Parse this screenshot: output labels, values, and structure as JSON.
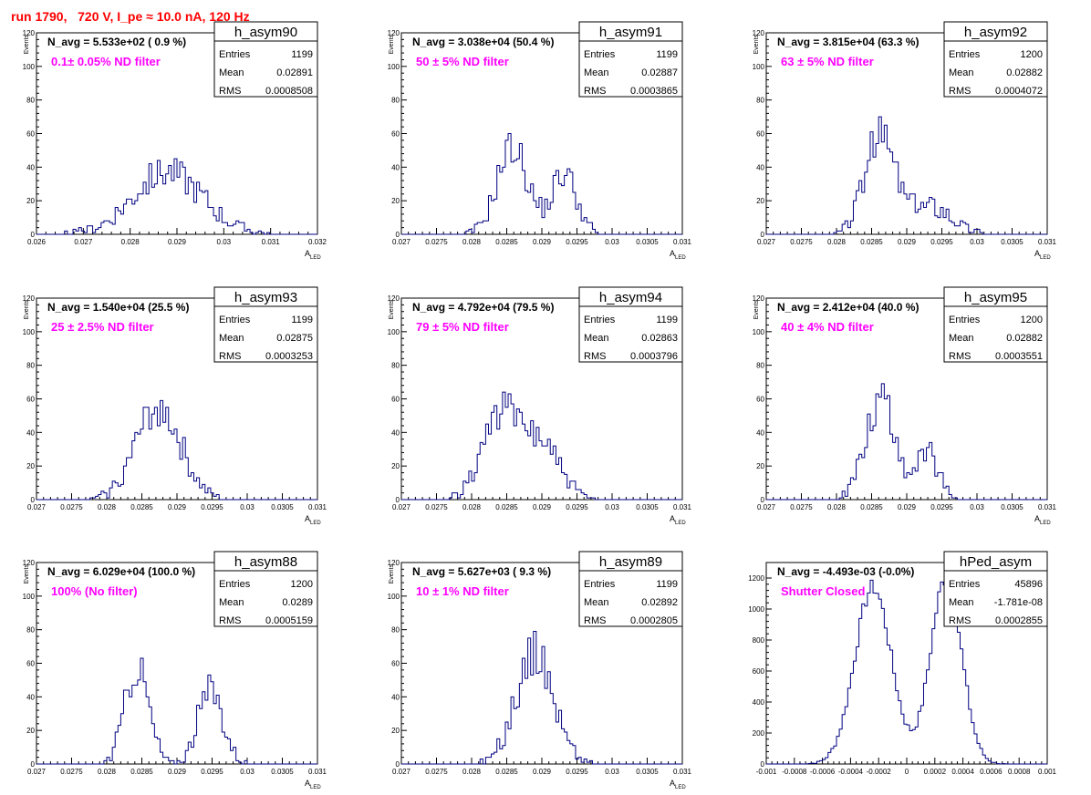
{
  "run_title": "run 1790,   720 V, I_pe ≈ 10.0 nA, 120 Hz",
  "colors": {
    "hist_line": "#000080",
    "annotation": "#ff00ff",
    "run_title": "#ff0000",
    "axes": "#000000"
  },
  "chart_data": [
    {
      "type": "histogram",
      "name": "h_asym90",
      "title": "N_avg = 5.533e+02 ( 0.9 %)",
      "annotation": "0.1± 0.05% ND filter",
      "xlabel": "A",
      "xlabel_sub": "LED",
      "ylabel": "Events",
      "xlim": [
        0.026,
        0.032
      ],
      "ylim": [
        0,
        120
      ],
      "xticks": [
        0.026,
        0.027,
        0.028,
        0.029,
        0.03,
        0.031,
        0.032
      ],
      "xticklabels": [
        "0.026",
        "0.027",
        "0.028",
        "0.029",
        "0.03",
        "0.031",
        "0.032"
      ],
      "yticks": [
        0,
        20,
        40,
        60,
        80,
        100,
        120
      ],
      "stats": {
        "Entries": "1199",
        "Mean": "0.02891",
        "RMS": "0.0008508"
      },
      "peaks": [
        {
          "mu": 0.0288,
          "sigma": 0.00075,
          "amp": 37
        }
      ],
      "noise_seed": 90
    },
    {
      "type": "histogram",
      "name": "h_asym91",
      "title": "N_avg = 3.038e+04 (50.4 %)",
      "annotation": "50 ± 5% ND filter",
      "xlabel": "A",
      "xlabel_sub": "LED",
      "ylabel": "Events",
      "xlim": [
        0.027,
        0.031
      ],
      "ylim": [
        0,
        120
      ],
      "xticks": [
        0.027,
        0.0275,
        0.028,
        0.0285,
        0.029,
        0.0295,
        0.03,
        0.0305,
        0.031
      ],
      "xticklabels": [
        "0.027",
        "0.0275",
        "0.028",
        "0.0285",
        "0.029",
        "0.0295",
        "0.03",
        "0.0305",
        "0.031"
      ],
      "yticks": [
        0,
        20,
        40,
        60,
        80,
        100,
        120
      ],
      "stats": {
        "Entries": "1199",
        "Mean": "0.02887",
        "RMS": "0.0003865"
      },
      "peaks": [
        {
          "mu": 0.02858,
          "sigma": 0.00022,
          "amp": 52
        },
        {
          "mu": 0.02932,
          "sigma": 0.00018,
          "amp": 36
        }
      ],
      "noise_seed": 91
    },
    {
      "type": "histogram",
      "name": "h_asym92",
      "title": "N_avg = 3.815e+04 (63.3 %)",
      "annotation": "63 ± 5% ND filter",
      "xlabel": "A",
      "xlabel_sub": "LED",
      "ylabel": "Events",
      "xlim": [
        0.027,
        0.031
      ],
      "ylim": [
        0,
        120
      ],
      "xticks": [
        0.027,
        0.0275,
        0.028,
        0.0285,
        0.029,
        0.0295,
        0.03,
        0.0305,
        0.031
      ],
      "xticklabels": [
        "0.027",
        "0.0275",
        "0.028",
        "0.0285",
        "0.029",
        "0.0295",
        "0.03",
        "0.0305",
        "0.031"
      ],
      "yticks": [
        0,
        20,
        40,
        60,
        80,
        100,
        120
      ],
      "stats": {
        "Entries": "1200",
        "Mean": "0.02882",
        "RMS": "0.0004072"
      },
      "peaks": [
        {
          "mu": 0.02862,
          "sigma": 0.00022,
          "amp": 58
        },
        {
          "mu": 0.02935,
          "sigma": 0.0003,
          "amp": 17
        }
      ],
      "noise_seed": 92
    },
    {
      "type": "histogram",
      "name": "h_asym93",
      "title": "N_avg = 1.540e+04 (25.5 %)",
      "annotation": "25 ± 2.5% ND filter",
      "xlabel": "A",
      "xlabel_sub": "LED",
      "ylabel": "Events",
      "xlim": [
        0.027,
        0.031
      ],
      "ylim": [
        0,
        120
      ],
      "xticks": [
        0.027,
        0.0275,
        0.028,
        0.0285,
        0.029,
        0.0295,
        0.03,
        0.0305,
        0.031
      ],
      "xticklabels": [
        "0.027",
        "0.0275",
        "0.028",
        "0.0285",
        "0.029",
        "0.0295",
        "0.03",
        "0.0305",
        "0.031"
      ],
      "yticks": [
        0,
        20,
        40,
        60,
        80,
        100,
        120
      ],
      "stats": {
        "Entries": "1199",
        "Mean": "0.02875",
        "RMS": "0.0003253"
      },
      "peaks": [
        {
          "mu": 0.02873,
          "sigma": 0.00032,
          "amp": 55
        }
      ],
      "noise_seed": 93
    },
    {
      "type": "histogram",
      "name": "h_asym94",
      "title": "N_avg = 4.792e+04 (79.5 %)",
      "annotation": "79 ± 5% ND filter",
      "xlabel": "A",
      "xlabel_sub": "LED",
      "ylabel": "Events",
      "xlim": [
        0.027,
        0.031
      ],
      "ylim": [
        0,
        120
      ],
      "xticks": [
        0.027,
        0.0275,
        0.028,
        0.0285,
        0.029,
        0.0295,
        0.03,
        0.0305,
        0.031
      ],
      "xticklabels": [
        "0.027",
        "0.0275",
        "0.028",
        "0.0285",
        "0.029",
        "0.0295",
        "0.03",
        "0.0305",
        "0.031"
      ],
      "yticks": [
        0,
        20,
        40,
        60,
        80,
        100,
        120
      ],
      "stats": {
        "Entries": "1199",
        "Mean": "0.02863",
        "RMS": "0.0003796"
      },
      "peaks": [
        {
          "mu": 0.02838,
          "sigma": 0.00025,
          "amp": 48
        },
        {
          "mu": 0.02895,
          "sigma": 0.00028,
          "amp": 36
        }
      ],
      "noise_seed": 94
    },
    {
      "type": "histogram",
      "name": "h_asym95",
      "title": "N_avg = 2.412e+04 (40.0 %)",
      "annotation": "40 ± 4% ND filter",
      "xlabel": "A",
      "xlabel_sub": "LED",
      "ylabel": "Events",
      "xlim": [
        0.027,
        0.031
      ],
      "ylim": [
        0,
        120
      ],
      "xticks": [
        0.027,
        0.0275,
        0.028,
        0.0285,
        0.029,
        0.0295,
        0.03,
        0.0305,
        0.031
      ],
      "xticklabels": [
        "0.027",
        "0.0275",
        "0.028",
        "0.0285",
        "0.029",
        "0.0295",
        "0.03",
        "0.0305",
        "0.031"
      ],
      "yticks": [
        0,
        20,
        40,
        60,
        80,
        100,
        120
      ],
      "stats": {
        "Entries": "1200",
        "Mean": "0.02882",
        "RMS": "0.0003551"
      },
      "peaks": [
        {
          "mu": 0.02863,
          "sigma": 0.00022,
          "amp": 60
        },
        {
          "mu": 0.0293,
          "sigma": 0.00015,
          "amp": 27
        }
      ],
      "noise_seed": 95
    },
    {
      "type": "histogram",
      "name": "h_asym88",
      "title": "N_avg = 6.029e+04 (100.0 %)",
      "annotation": "100% (No filter)",
      "xlabel": "A",
      "xlabel_sub": "LED",
      "ylabel": "Events",
      "xlim": [
        0.027,
        0.031
      ],
      "ylim": [
        0,
        120
      ],
      "xticks": [
        0.027,
        0.0275,
        0.028,
        0.0285,
        0.029,
        0.0295,
        0.03,
        0.0305,
        0.031
      ],
      "xticklabels": [
        "0.027",
        "0.0275",
        "0.028",
        "0.0285",
        "0.029",
        "0.0295",
        "0.03",
        "0.0305",
        "0.031"
      ],
      "yticks": [
        0,
        20,
        40,
        60,
        80,
        100,
        120
      ],
      "stats": {
        "Entries": "1200",
        "Mean": "0.0289",
        "RMS": "0.0005159"
      },
      "peaks": [
        {
          "mu": 0.02843,
          "sigma": 0.00017,
          "amp": 58
        },
        {
          "mu": 0.02948,
          "sigma": 0.00018,
          "amp": 44
        }
      ],
      "noise_seed": 88
    },
    {
      "type": "histogram",
      "name": "h_asym89",
      "title": "N_avg = 5.627e+03 ( 9.3 %)",
      "annotation": "10 ± 1% ND filter",
      "xlabel": "A",
      "xlabel_sub": "LED",
      "ylabel": "Events",
      "xlim": [
        0.027,
        0.031
      ],
      "ylim": [
        0,
        120
      ],
      "xticks": [
        0.027,
        0.0275,
        0.028,
        0.0285,
        0.029,
        0.0295,
        0.03,
        0.0305,
        0.031
      ],
      "xticklabels": [
        "0.027",
        "0.0275",
        "0.028",
        "0.0285",
        "0.029",
        "0.0295",
        "0.03",
        "0.0305",
        "0.031"
      ],
      "yticks": [
        0,
        20,
        40,
        60,
        80,
        100,
        120
      ],
      "stats": {
        "Entries": "1199",
        "Mean": "0.02892",
        "RMS": "0.0002805"
      },
      "peaks": [
        {
          "mu": 0.0289,
          "sigma": 0.00027,
          "amp": 66
        }
      ],
      "noise_seed": 89
    },
    {
      "type": "histogram",
      "name": "hPed_asym",
      "title": "N_avg = -4.493e-03 (-0.0%)",
      "annotation": "Shutter Closed",
      "xlabel": "",
      "xlabel_sub": "",
      "ylabel": "",
      "xlim": [
        -0.001,
        0.001
      ],
      "ylim": [
        0,
        1300
      ],
      "xticks": [
        -0.001,
        -0.0008,
        -0.0006,
        -0.0004,
        -0.0002,
        0,
        0.0002,
        0.0004,
        0.0006,
        0.0008,
        0.001
      ],
      "xticklabels": [
        "-0.001",
        "-0.0008",
        "-0.0006",
        "-0.0004",
        "-0.0002",
        "0",
        "0.0002",
        "0.0004",
        "0.0006",
        "0.0008",
        "0.001"
      ],
      "yticks": [
        0,
        200,
        400,
        600,
        800,
        1000,
        1200
      ],
      "stats": {
        "Entries": "45896",
        "Mean": "-1.781e-08",
        "RMS": "0.0002855"
      },
      "peaks": [
        {
          "mu": -0.00024,
          "sigma": 0.00013,
          "amp": 1140
        },
        {
          "mu": 0.00028,
          "sigma": 0.00011,
          "amp": 1200
        }
      ],
      "noise_seed": 7
    }
  ]
}
